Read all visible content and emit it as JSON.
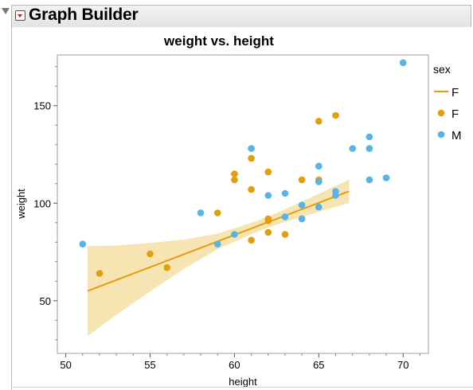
{
  "window": {
    "title": "Graph Builder"
  },
  "chart_data": {
    "type": "scatter",
    "title": "weight vs. height",
    "xlabel": "height",
    "ylabel": "weight",
    "xlim": [
      49.5,
      71.5
    ],
    "ylim": [
      23,
      176
    ],
    "x_ticks": [
      50,
      55,
      60,
      65,
      70
    ],
    "y_ticks": [
      50,
      100,
      150
    ],
    "grid": false,
    "legend": {
      "title": "sex",
      "placement": "right",
      "items": [
        {
          "label": "F",
          "kind": "line",
          "color": "#e39e0b"
        },
        {
          "label": "F",
          "kind": "point",
          "color": "#e39e0b"
        },
        {
          "label": "M",
          "kind": "point",
          "color": "#56b4e9"
        }
      ]
    },
    "series": [
      {
        "name": "F",
        "color": "#e39e0b",
        "points": [
          [
            52,
            64
          ],
          [
            55,
            74
          ],
          [
            56,
            67
          ],
          [
            59,
            95
          ],
          [
            60,
            115
          ],
          [
            60,
            112
          ],
          [
            61,
            123
          ],
          [
            61,
            107
          ],
          [
            61,
            81
          ],
          [
            62,
            116
          ],
          [
            62,
            92
          ],
          [
            62,
            91
          ],
          [
            62,
            85
          ],
          [
            63,
            84
          ],
          [
            64,
            112
          ],
          [
            65,
            142
          ],
          [
            65,
            112
          ],
          [
            65,
            111
          ],
          [
            66,
            145
          ]
        ]
      },
      {
        "name": "M",
        "color": "#56b4e9",
        "points": [
          [
            51,
            79
          ],
          [
            58,
            95
          ],
          [
            59,
            79
          ],
          [
            60,
            84
          ],
          [
            61,
            128
          ],
          [
            62,
            104
          ],
          [
            63,
            105
          ],
          [
            63,
            93
          ],
          [
            64,
            99
          ],
          [
            64,
            92
          ],
          [
            65,
            119
          ],
          [
            65,
            111
          ],
          [
            65,
            98
          ],
          [
            66,
            106
          ],
          [
            66,
            104
          ],
          [
            67,
            128
          ],
          [
            68,
            134
          ],
          [
            68,
            128
          ],
          [
            68,
            112
          ],
          [
            69,
            113
          ],
          [
            70,
            172
          ]
        ]
      }
    ],
    "fit": {
      "series": "F",
      "color": "#e39e0b",
      "band_color": "#f6dfa6",
      "x": [
        51.3,
        53,
        55,
        57,
        59,
        61,
        62,
        63,
        65,
        66.8
      ],
      "y": [
        55,
        60.6,
        67.2,
        73.8,
        80.4,
        87,
        90.3,
        93.6,
        100.2,
        106.1
      ],
      "lower": [
        32,
        42.8,
        54.8,
        66.3,
        76.4,
        84.1,
        87.5,
        90.3,
        95.6,
        100.1
      ],
      "upper": [
        78,
        78.3,
        79.6,
        81.3,
        84.4,
        89.9,
        93.1,
        96.9,
        104.8,
        112.1
      ]
    }
  }
}
